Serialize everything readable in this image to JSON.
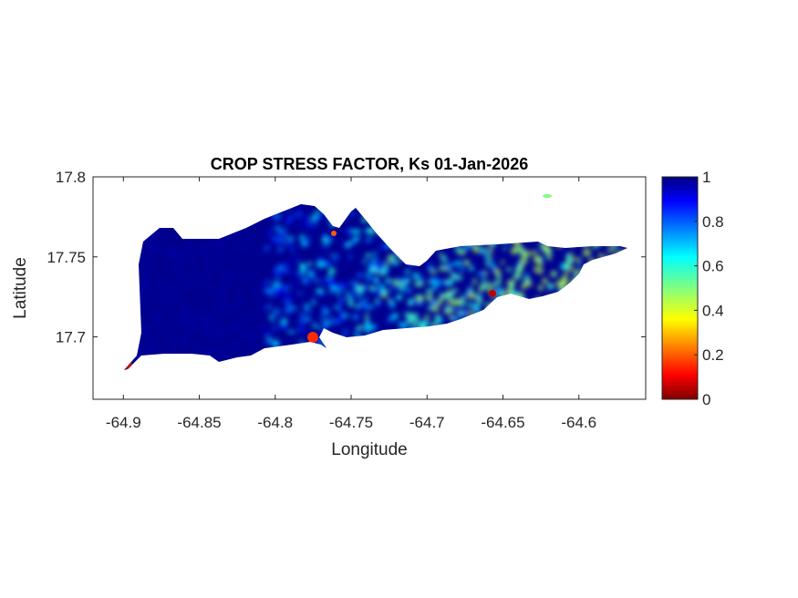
{
  "chart_data": {
    "type": "heatmap",
    "title": "CROP STRESS FACTOR, Ks  01-Jan-2026",
    "xlabel": "Longitude",
    "ylabel": "Latitude",
    "xlim": [
      -64.92,
      -64.556
    ],
    "ylim": [
      17.661,
      17.8
    ],
    "xticks": [
      -64.9,
      -64.85,
      -64.8,
      -64.75,
      -64.7,
      -64.65,
      -64.6
    ],
    "xtick_labels": [
      "-64.9",
      "-64.85",
      "-64.8",
      "-64.75",
      "-64.7",
      "-64.65",
      "-64.6"
    ],
    "yticks": [
      17.7,
      17.75,
      17.8
    ],
    "ytick_labels": [
      "17.7",
      "17.75",
      "17.8"
    ],
    "colorbar": {
      "colormap": "jet",
      "range": [
        0,
        1
      ],
      "ticks": [
        0,
        0.2,
        0.4,
        0.6,
        0.8,
        1
      ],
      "tick_labels": [
        "0",
        "0.2",
        "0.4",
        "0.6",
        "0.8",
        "1"
      ],
      "placement": "right"
    },
    "grid": false,
    "summary_values": {
      "west_region_ks": 1.0,
      "central_region_ks": 0.85,
      "east_region_ks": 0.6,
      "hotspot_min_ks": 0.0
    }
  }
}
